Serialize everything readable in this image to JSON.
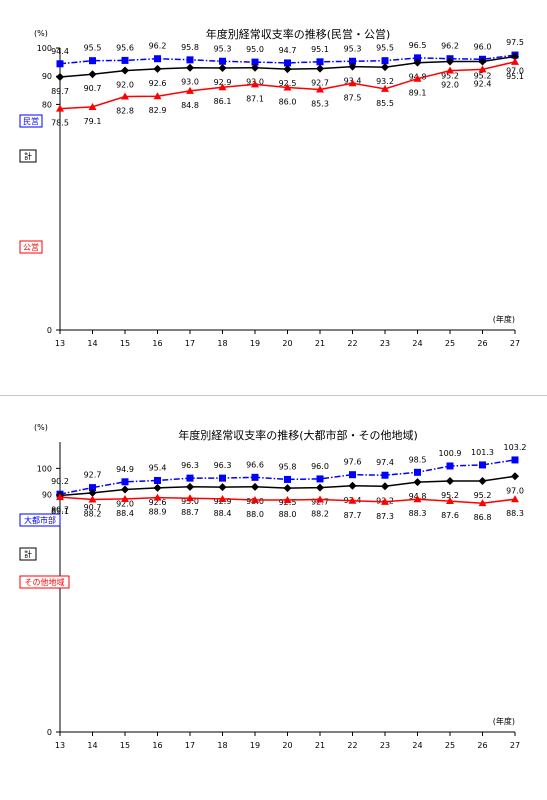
{
  "chart_data": [
    {
      "type": "line",
      "title": "年度別経常収支率の推移(民営・公営)",
      "yunit": "(%)",
      "xunit": "(年度)",
      "ylim": [
        0,
        100
      ],
      "yticks": [
        0,
        80,
        90,
        100
      ],
      "categories": [
        "13",
        "14",
        "15",
        "16",
        "17",
        "18",
        "19",
        "20",
        "21",
        "22",
        "23",
        "24",
        "25",
        "26",
        "27"
      ],
      "series": [
        {
          "name": "民営",
          "color": "#0000ff",
          "marker": "square",
          "dash": "dashdot",
          "values": [
            94.4,
            95.5,
            95.6,
            96.2,
            95.8,
            95.3,
            95.0,
            94.7,
            95.1,
            95.3,
            95.5,
            96.5,
            96.2,
            96.0,
            97.5
          ]
        },
        {
          "name": "計",
          "color": "#000000",
          "marker": "diamond",
          "dash": "solid",
          "values": [
            89.7,
            90.7,
            92.0,
            92.6,
            93.0,
            92.9,
            93.0,
            92.5,
            92.7,
            93.4,
            93.2,
            94.8,
            95.2,
            95.2,
            97.0
          ]
        },
        {
          "name": "公営",
          "color": "#ff0000",
          "marker": "triangle",
          "dash": "solid",
          "values": [
            78.5,
            79.1,
            82.8,
            82.9,
            84.8,
            86.1,
            87.1,
            86.0,
            85.3,
            87.5,
            85.5,
            89.1,
            92.0,
            92.4,
            95.1
          ]
        }
      ]
    },
    {
      "type": "line",
      "title": "年度別経常収支率の推移(大都市部・その他地域)",
      "yunit": "(%)",
      "xunit": "(年度)",
      "ylim": [
        0,
        110
      ],
      "yticks": [
        0,
        80,
        90,
        100
      ],
      "categories": [
        "13",
        "14",
        "15",
        "16",
        "17",
        "18",
        "19",
        "20",
        "21",
        "22",
        "23",
        "24",
        "25",
        "26",
        "27"
      ],
      "series": [
        {
          "name": "大都市部",
          "color": "#0000ff",
          "marker": "square",
          "dash": "dashdot",
          "values": [
            90.2,
            92.7,
            94.9,
            95.4,
            96.3,
            96.3,
            96.6,
            95.8,
            96.0,
            97.6,
            97.4,
            98.5,
            100.9,
            101.3,
            103.2
          ]
        },
        {
          "name": "計",
          "color": "#000000",
          "marker": "diamond",
          "dash": "solid",
          "values": [
            89.7,
            90.7,
            92.0,
            92.6,
            93.0,
            92.9,
            93.0,
            92.5,
            92.7,
            93.4,
            93.2,
            94.8,
            95.2,
            95.2,
            97.0
          ]
        },
        {
          "name": "その他地域",
          "color": "#ff0000",
          "marker": "triangle",
          "dash": "solid",
          "values": [
            89.1,
            88.2,
            88.4,
            88.9,
            88.7,
            88.4,
            88.0,
            88.0,
            88.2,
            87.7,
            87.3,
            88.3,
            87.6,
            86.8,
            88.3
          ]
        }
      ]
    }
  ]
}
